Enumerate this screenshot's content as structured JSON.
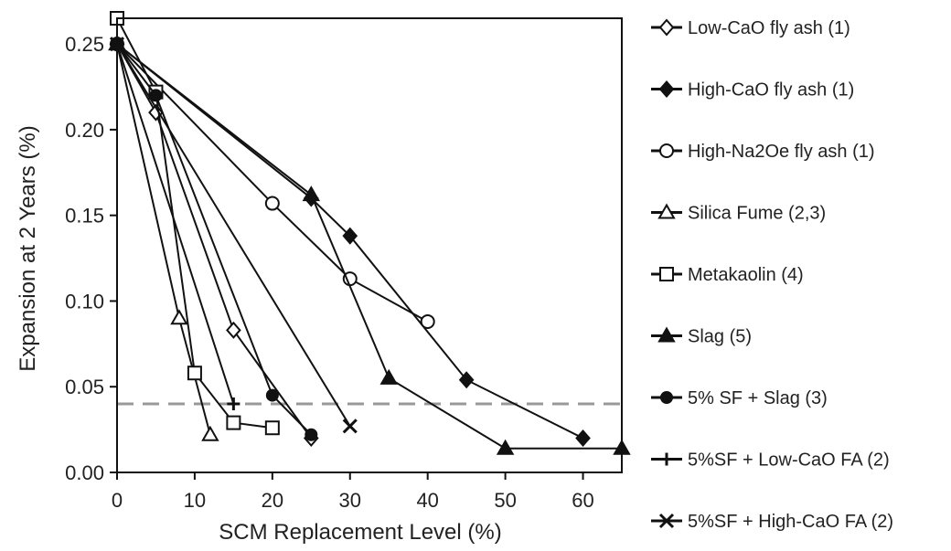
{
  "chart_data": {
    "type": "line",
    "xlabel": "SCM Replacement Level (%)",
    "ylabel": "Expansion at 2 Years (%)",
    "xlim": [
      0,
      65
    ],
    "ylim": [
      0,
      0.265
    ],
    "x_ticks": [
      0,
      10,
      20,
      30,
      40,
      50,
      60
    ],
    "x_tick_labels": [
      "0",
      "10",
      "20",
      "30",
      "40",
      "50",
      "60"
    ],
    "y_ticks": [
      0,
      0.05,
      0.1,
      0.15,
      0.2,
      0.25
    ],
    "y_tick_labels": [
      "0.00",
      "0.05",
      "0.10",
      "0.15",
      "0.20",
      "0.25"
    ],
    "grid": false,
    "legend_position": "right",
    "reference_line": {
      "y": 0.04,
      "style": "dashed",
      "color": "#999999"
    },
    "series": [
      {
        "name": "Low-CaO fly ash (1)",
        "marker": "open-diamond",
        "x": [
          0,
          5,
          15,
          25
        ],
        "y": [
          0.25,
          0.21,
          0.083,
          0.02
        ]
      },
      {
        "name": "High-CaO fly ash (1)",
        "marker": "filled-diamond",
        "x": [
          0,
          25,
          30,
          45,
          60
        ],
        "y": [
          0.25,
          0.16,
          0.138,
          0.054,
          0.02
        ]
      },
      {
        "name": "High-Na2Oe fly ash (1)",
        "marker": "open-circle",
        "x": [
          0,
          20,
          30,
          40
        ],
        "y": [
          0.25,
          0.157,
          0.113,
          0.088
        ]
      },
      {
        "name": "Silica Fume (2,3)",
        "marker": "open-triangle",
        "x": [
          0,
          8,
          12
        ],
        "y": [
          0.25,
          0.09,
          0.022
        ]
      },
      {
        "name": "Metakaolin (4)",
        "marker": "open-square",
        "x": [
          0,
          5,
          10,
          15,
          20
        ],
        "y": [
          0.265,
          0.222,
          0.058,
          0.029,
          0.026
        ]
      },
      {
        "name": "Slag (5)",
        "marker": "filled-triangle",
        "x": [
          0,
          25,
          35,
          50,
          65
        ],
        "y": [
          0.25,
          0.162,
          0.055,
          0.014,
          0.014
        ]
      },
      {
        "name": "5% SF + Slag (3)",
        "marker": "filled-circle",
        "x": [
          0,
          5,
          20,
          25
        ],
        "y": [
          0.25,
          0.22,
          0.045,
          0.022
        ]
      },
      {
        "name": "5%SF + Low-CaO FA (2)",
        "marker": "plus",
        "x": [
          0,
          15
        ],
        "y": [
          0.25,
          0.04
        ]
      },
      {
        "name": "5%SF + High-CaO FA (2)",
        "marker": "x",
        "x": [
          0,
          30
        ],
        "y": [
          0.25,
          0.027
        ]
      }
    ]
  }
}
